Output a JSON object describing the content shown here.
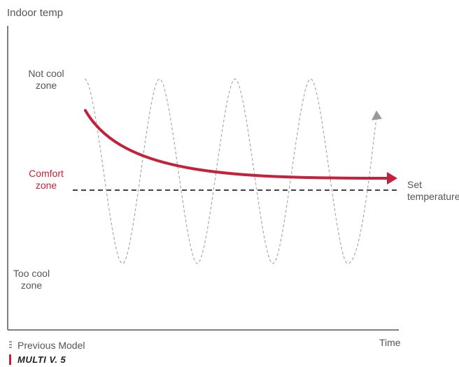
{
  "axes": {
    "y_label": "Indoor temp",
    "x_label": "Time"
  },
  "zones": {
    "not_cool_line1": "Not cool",
    "not_cool_line2": "zone",
    "comfort_line1": "Comfort",
    "comfort_line2": "zone",
    "too_cool_line1": "Too cool",
    "too_cool_line2": "zone"
  },
  "set_temperature": {
    "line1": "Set",
    "line2": "temperature"
  },
  "legend": {
    "previous_model": "Previous Model",
    "new_model": "MULTI V. 5"
  },
  "colors": {
    "multi_v5_curve": "#c4213a",
    "previous_model_curve": "#aaaaaa",
    "set_line": "#444444",
    "axis": "#555555"
  }
}
